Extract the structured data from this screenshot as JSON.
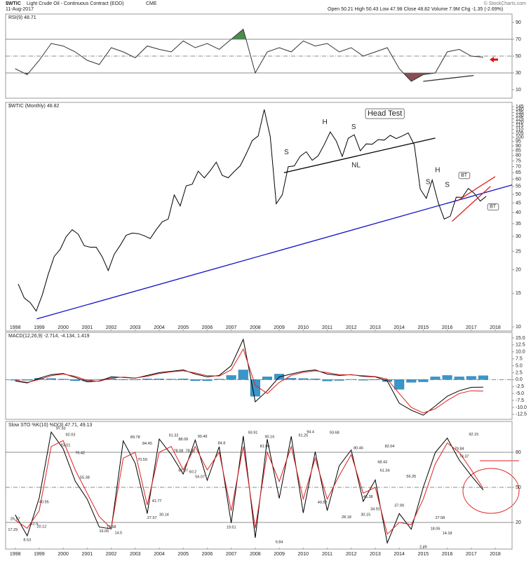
{
  "header": {
    "symbol": "$WTIC",
    "name": "Light Crude Oil - Continuous Contract (EOD)",
    "exchange": "CME",
    "date": "11-Aug-2017",
    "quote": "Open 50.21 High 50.43 Low 47.98 Close 48.82 Volume 7.9M Chg -1.35 (-2.69%)",
    "credit": "© StockCharts.com"
  },
  "chart_data": [
    {
      "type": "line",
      "label": "RSI(9) 48.71",
      "log": false,
      "xlim": [
        1997.6,
        2018.7
      ],
      "ylim": [
        0,
        100
      ],
      "yticks": [
        10,
        30,
        50,
        70,
        90
      ],
      "levels": [
        30,
        50,
        70
      ],
      "dashed_level": 50,
      "fill_above": 70,
      "fill_above_color": "#4f8a4f",
      "fill_below": 30,
      "fill_below_color": "#8a4f55",
      "x": [
        1998.0,
        1998.5,
        1999.0,
        1999.5,
        2000.0,
        2000.5,
        2001.0,
        2001.5,
        2002.0,
        2002.5,
        2003.0,
        2003.5,
        2004.0,
        2004.5,
        2005.0,
        2005.5,
        2006.0,
        2006.5,
        2007.0,
        2007.5,
        2008.0,
        2008.5,
        2009.0,
        2009.5,
        2010.0,
        2010.5,
        2011.0,
        2011.5,
        2012.0,
        2012.5,
        2013.0,
        2013.5,
        2014.0,
        2014.5,
        2015.0,
        2015.5,
        2016.0,
        2016.5,
        2017.0,
        2017.5
      ],
      "series": [
        {
          "color": "#333333",
          "values": [
            35,
            28,
            45,
            65,
            62,
            55,
            45,
            40,
            60,
            55,
            48,
            62,
            58,
            55,
            68,
            60,
            65,
            58,
            70,
            82,
            30,
            55,
            60,
            55,
            68,
            62,
            65,
            55,
            60,
            50,
            55,
            60,
            35,
            20,
            28,
            30,
            55,
            58,
            50,
            48.71
          ]
        }
      ],
      "lines": [
        {
          "color": "#333333",
          "x": [
            2015.0,
            2017.1
          ],
          "y": [
            20,
            27
          ]
        }
      ]
    },
    {
      "type": "line",
      "label": "$WTIC (Monthly) 48.82",
      "log": true,
      "xlim": [
        1997.6,
        2018.7
      ],
      "ylim": [
        9.5,
        152.7
      ],
      "yticks": [
        10,
        15,
        20,
        25,
        30,
        35,
        40,
        45,
        50,
        55,
        60,
        65,
        70,
        75,
        80,
        85,
        90,
        95,
        100,
        105,
        110,
        115,
        120,
        125,
        130,
        135,
        140,
        145
      ],
      "xticks": [
        1998,
        1999,
        2000,
        2001,
        2002,
        2003,
        2004,
        2005,
        2006,
        2007,
        2008,
        2009,
        2010,
        2011,
        2012,
        2013,
        2014,
        2015,
        2016,
        2017,
        2018
      ],
      "x": [
        1998.125,
        1998.375,
        1998.625,
        1998.875,
        1999.125,
        1999.375,
        1999.625,
        1999.875,
        2000.125,
        2000.375,
        2000.625,
        2000.875,
        2001.125,
        2001.375,
        2001.625,
        2001.875,
        2002.125,
        2002.375,
        2002.625,
        2002.875,
        2003.125,
        2003.375,
        2003.625,
        2003.875,
        2004.125,
        2004.375,
        2004.625,
        2004.875,
        2005.125,
        2005.375,
        2005.625,
        2005.875,
        2006.125,
        2006.375,
        2006.625,
        2006.875,
        2007.125,
        2007.375,
        2007.625,
        2007.875,
        2008.125,
        2008.375,
        2008.625,
        2008.875,
        2009.125,
        2009.375,
        2009.625,
        2009.875,
        2010.125,
        2010.375,
        2010.625,
        2010.875,
        2011.125,
        2011.375,
        2011.625,
        2011.875,
        2012.125,
        2012.375,
        2012.625,
        2012.875,
        2013.125,
        2013.375,
        2013.625,
        2013.875,
        2014.125,
        2014.375,
        2014.625,
        2014.875,
        2015.125,
        2015.375,
        2015.625,
        2015.875,
        2016.125,
        2016.375,
        2016.625,
        2016.875,
        2017.125,
        2017.375,
        2017.625
      ],
      "series": [
        {
          "color": "#000000",
          "values": [
            16.8,
            14.2,
            13.4,
            12.1,
            14.7,
            18.9,
            23.5,
            25.6,
            29.9,
            32.5,
            30.8,
            26.8,
            26.3,
            26.3,
            23.4,
            19.8,
            24.1,
            26.9,
            30.4,
            31.2,
            31.0,
            30.2,
            29.2,
            32.5,
            35.8,
            37.0,
            49.6,
            43.4,
            55.4,
            56.5,
            66.2,
            61.0,
            66.6,
            73.9,
            62.9,
            61.1,
            65.9,
            70.7,
            81.7,
            96.0,
            101.6,
            140.0,
            100.6,
            44.6,
            49.7,
            69.9,
            70.6,
            79.4,
            83.8,
            75.6,
            79.9,
            91.4,
            106.7,
            95.4,
            79.2,
            98.8,
            103.0,
            84.9,
            92.2,
            91.8,
            97.2,
            96.6,
            102.3,
            98.4,
            101.6,
            105.4,
            91.2,
            53.3,
            47.6,
            59.5,
            45.1,
            37.0,
            38.3,
            48.3,
            48.2,
            53.7,
            50.6,
            46.0,
            48.82
          ]
        }
      ],
      "lines": [
        {
          "color": "#1010c8",
          "x": [
            1998.9,
            2018.7
          ],
          "y": [
            11,
            56
          ]
        },
        {
          "color": "#000000",
          "x": [
            2009.2,
            2015.5
          ],
          "y": [
            65,
            99
          ]
        },
        {
          "color": "#e02020",
          "x": [
            2016.2,
            2017.8
          ],
          "y": [
            36,
            55
          ]
        },
        {
          "color": "#e02020",
          "x": [
            2016.4,
            2018.0
          ],
          "y": [
            46,
            62
          ]
        }
      ],
      "annotations": [
        {
          "text": "S",
          "x": 2009.3,
          "y": 83
        },
        {
          "text": "H",
          "x": 2010.9,
          "y": 120
        },
        {
          "text": "S",
          "x": 2012.1,
          "y": 113
        },
        {
          "text": "NL",
          "x": 2012.2,
          "y": 71
        },
        {
          "text": "Head Test",
          "x": 2013.4,
          "y": 133,
          "box": true
        },
        {
          "text": "S",
          "x": 2015.2,
          "y": 58
        },
        {
          "text": "H",
          "x": 2015.6,
          "y": 67
        },
        {
          "text": "S",
          "x": 2016.0,
          "y": 56
        },
        {
          "text": "BT",
          "x": 2016.7,
          "y": 63,
          "box": true
        },
        {
          "text": "BT",
          "x": 2017.9,
          "y": 43,
          "box": true
        }
      ]
    },
    {
      "type": "line",
      "label": "MACD(12,26,9) -2.714, -4.134, 1.419",
      "log": false,
      "xlim": [
        1997.6,
        2018.7
      ],
      "ylim": [
        -14.3,
        17
      ],
      "yticks": [
        {
          "value": 15,
          "label": "15.0"
        },
        12.5,
        {
          "value": 10,
          "label": "10.0"
        },
        7.5,
        {
          "value": 5,
          "label": "5.0"
        },
        2.5,
        {
          "value": 0,
          "label": "0.0"
        },
        -2.5,
        {
          "value": -5,
          "label": "-5.0"
        },
        -7.5,
        {
          "value": -10,
          "label": "-10.0"
        },
        -12.5
      ],
      "levels": [
        0
      ],
      "dashed_level": 0,
      "x": [
        1998.0,
        1998.5,
        1999.0,
        1999.5,
        2000.0,
        2000.5,
        2001.0,
        2001.5,
        2002.0,
        2002.5,
        2003.0,
        2003.5,
        2004.0,
        2004.5,
        2005.0,
        2005.5,
        2006.0,
        2006.5,
        2007.0,
        2007.5,
        2008.0,
        2008.5,
        2009.0,
        2009.5,
        2010.0,
        2010.5,
        2011.0,
        2011.5,
        2012.0,
        2012.5,
        2013.0,
        2013.5,
        2014.0,
        2014.5,
        2015.0,
        2015.5,
        2016.0,
        2016.5,
        2017.0,
        2017.5
      ],
      "series": [
        {
          "color": "#3a96c8",
          "style": "bar",
          "values": [
            -0.2,
            -0.2,
            0.5,
            0.4,
            0.2,
            -0.4,
            -0.5,
            0.1,
            0.4,
            -0.1,
            -0.1,
            0.3,
            0.3,
            0.2,
            0.3,
            -0.4,
            -0.4,
            0.2,
            1.5,
            3.5,
            -6.0,
            1.0,
            2.0,
            0.5,
            0.4,
            0.3,
            -0.5,
            -0.3,
            0.1,
            -0.2,
            -0.1,
            -0.7,
            -3.5,
            -1.0,
            -0.8,
            1.0,
            1.5,
            1.0,
            1.2,
            1.419
          ]
        },
        {
          "color": "#000000",
          "values": [
            -0.5,
            -1.2,
            0.5,
            1.8,
            2.2,
            0.8,
            -0.8,
            -0.5,
            1.0,
            0.8,
            0.5,
            1.5,
            2.5,
            3.0,
            3.5,
            2.0,
            1.0,
            1.5,
            5.0,
            14.5,
            -8.0,
            -4.0,
            1.0,
            2.0,
            3.0,
            3.5,
            2.0,
            1.5,
            1.8,
            1.2,
            1.0,
            -0.5,
            -8.5,
            -11.0,
            -12.8,
            -9.5,
            -6.0,
            -4.0,
            -2.8,
            -2.714
          ]
        },
        {
          "color": "#e02020",
          "values": [
            -0.3,
            -1.0,
            0.0,
            1.4,
            2.0,
            1.2,
            -0.3,
            -0.6,
            0.6,
            0.9,
            0.6,
            1.2,
            2.2,
            2.8,
            3.2,
            2.4,
            1.4,
            1.3,
            3.5,
            11.0,
            -2.0,
            -5.0,
            -1.0,
            1.5,
            2.6,
            3.2,
            2.5,
            1.8,
            1.7,
            1.4,
            1.1,
            0.2,
            -5.0,
            -10.0,
            -12.0,
            -10.5,
            -7.5,
            -5.0,
            -4.0,
            -4.134
          ]
        }
      ]
    },
    {
      "type": "line",
      "label": "Slow STO %K(10) %D(3) 47.71, 49.13",
      "log": false,
      "xlim": [
        1997.6,
        2018.7
      ],
      "ylim": [
        -2.8,
        106.4
      ],
      "yticks": [
        20,
        50,
        80
      ],
      "levels": [
        20,
        50,
        80
      ],
      "dashed_level": 50,
      "xticks": [
        1998,
        1999,
        2000,
        2001,
        2002,
        2003,
        2004,
        2005,
        2006,
        2007,
        2008,
        2009,
        2010,
        2011,
        2012,
        2013,
        2014,
        2015,
        2016,
        2017,
        2018
      ],
      "x": [
        1998.0,
        1998.5,
        1999.0,
        1999.5,
        2000.0,
        2000.5,
        2001.0,
        2001.5,
        2002.0,
        2002.5,
        2003.0,
        2003.5,
        2004.0,
        2004.5,
        2005.0,
        2005.5,
        2006.0,
        2006.5,
        2007.0,
        2007.5,
        2008.0,
        2008.5,
        2009.0,
        2009.5,
        2010.0,
        2010.5,
        2011.0,
        2011.5,
        2012.0,
        2012.5,
        2013.0,
        2013.5,
        2014.0,
        2014.5,
        2015.0,
        2015.5,
        2016.0,
        2016.5,
        2017.0,
        2017.5
      ],
      "series": [
        {
          "color": "#000000",
          "values": [
            26.57,
            8.53,
            40.95,
            97.33,
            83.01,
            55.38,
            40,
            16.05,
            14.5,
            89.78,
            70.59,
            27.57,
            91.32,
            78.08,
            61.37,
            90.49,
            56.07,
            84.8,
            19.51,
            93.91,
            6.84,
            91.25,
            40.57,
            93.68,
            28.18,
            80.46,
            30.15,
            68.43,
            82.04,
            37.99,
            56.35,
            2.49,
            27.58,
            14.18,
            50,
            79.84,
            92.15,
            73.37,
            60,
            47.71
          ]
        },
        {
          "color": "#e02020",
          "values": [
            22,
            15,
            30,
            85,
            90,
            65,
            45,
            25,
            15,
            75,
            80,
            35,
            80,
            85,
            65,
            85,
            65,
            80,
            30,
            85,
            15,
            80,
            55,
            85,
            40,
            75,
            40,
            60,
            78,
            45,
            50,
            10,
            20,
            18,
            40,
            70,
            88,
            80,
            65,
            49.13
          ]
        }
      ],
      "point_labels": [
        {
          "x": 1998.0,
          "value": 26.57
        },
        {
          "x": 1997.9,
          "value": 17.29
        },
        {
          "x": 1998.5,
          "value": 8.53
        },
        {
          "x": 1998.8,
          "value": 22.5
        },
        {
          "x": 1999.1,
          "value": 20.12
        },
        {
          "x": 1999.2,
          "value": 40.95
        },
        {
          "x": 1999.9,
          "value": 97.33
        },
        {
          "x": 2000.3,
          "value": 92.03
        },
        {
          "x": 2000.1,
          "value": 83.01
        },
        {
          "x": 2000.7,
          "value": 76.42
        },
        {
          "x": 2000.9,
          "value": 55.38
        },
        {
          "x": 2001.7,
          "value": 16.05
        },
        {
          "x": 2002.0,
          "value": 19.58
        },
        {
          "x": 2002.3,
          "value": 14.5
        },
        {
          "x": 2003.0,
          "value": 89.78
        },
        {
          "x": 2003.5,
          "value": 84.45
        },
        {
          "x": 2003.3,
          "value": 70.59
        },
        {
          "x": 2003.9,
          "value": 41.77
        },
        {
          "x": 2003.7,
          "value": 27.57
        },
        {
          "x": 2004.2,
          "value": 30.14
        },
        {
          "x": 2004.6,
          "value": 91.32
        },
        {
          "x": 2005.0,
          "value": 88.09
        },
        {
          "x": 2004.8,
          "value": 78.08
        },
        {
          "x": 2005.3,
          "value": 78.32
        },
        {
          "x": 2005.0,
          "value": 61.37
        },
        {
          "x": 2005.4,
          "value": 60.2
        },
        {
          "x": 2005.8,
          "value": 90.49
        },
        {
          "x": 2005.7,
          "value": 56.07
        },
        {
          "x": 2006.6,
          "value": 84.8
        },
        {
          "x": 2007.0,
          "value": 19.51
        },
        {
          "x": 2007.9,
          "value": 93.91
        },
        {
          "x": 2008.6,
          "value": 90.16
        },
        {
          "x": 2008.4,
          "value": 81.96
        },
        {
          "x": 2009.0,
          "value": 6.84
        },
        {
          "x": 2010.0,
          "value": 91.25
        },
        {
          "x": 2010.3,
          "value": 94.4
        },
        {
          "x": 2010.8,
          "value": 40.57
        },
        {
          "x": 2011.3,
          "value": 93.68
        },
        {
          "x": 2011.8,
          "value": 28.18
        },
        {
          "x": 2012.3,
          "value": 80.46
        },
        {
          "x": 2012.7,
          "value": 45.38
        },
        {
          "x": 2012.6,
          "value": 30.15
        },
        {
          "x": 2013.0,
          "value": 34.91
        },
        {
          "x": 2013.3,
          "value": 68.43
        },
        {
          "x": 2013.6,
          "value": 82.04
        },
        {
          "x": 2013.4,
          "value": 61.34
        },
        {
          "x": 2014.0,
          "value": 37.99
        },
        {
          "x": 2014.5,
          "value": 56.35
        },
        {
          "x": 2015.0,
          "value": 2.49
        },
        {
          "x": 2015.7,
          "value": 27.58
        },
        {
          "x": 2015.5,
          "value": 18.06
        },
        {
          "x": 2016.0,
          "value": 14.18
        },
        {
          "x": 2016.5,
          "value": 79.84
        },
        {
          "x": 2016.7,
          "value": 73.37
        },
        {
          "x": 2017.1,
          "value": 92.15
        }
      ]
    }
  ]
}
